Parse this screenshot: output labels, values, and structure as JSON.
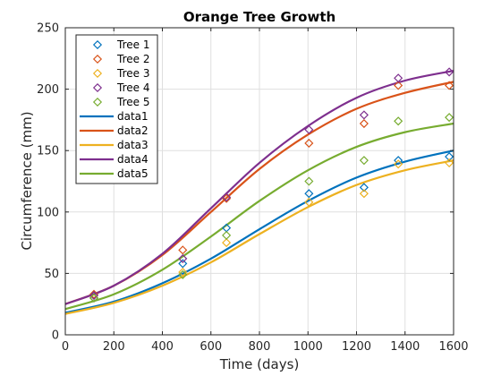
{
  "chart_data": {
    "type": "scatter",
    "title": "Orange Tree Growth",
    "xlabel": "Time (days)",
    "ylabel": "Circumference (mm)",
    "xlim": [
      0,
      1600
    ],
    "ylim": [
      0,
      250
    ],
    "xticks": [
      0,
      200,
      400,
      600,
      800,
      1000,
      1200,
      1400,
      1600
    ],
    "yticks": [
      0,
      50,
      100,
      150,
      200,
      250
    ],
    "grid": true,
    "legend_position": "top-left",
    "series": [
      {
        "name": "Tree 1",
        "kind": "marker",
        "marker": "diamond",
        "color": "#0072BD",
        "x": [
          118,
          484,
          664,
          1004,
          1231,
          1372,
          1582
        ],
        "y": [
          30,
          58,
          87,
          115,
          120,
          142,
          145
        ]
      },
      {
        "name": "Tree 2",
        "kind": "marker",
        "marker": "diamond",
        "color": "#D95319",
        "x": [
          118,
          484,
          664,
          1004,
          1231,
          1372,
          1582
        ],
        "y": [
          33,
          69,
          111,
          156,
          172,
          203,
          203
        ]
      },
      {
        "name": "Tree 3",
        "kind": "marker",
        "marker": "diamond",
        "color": "#EDB120",
        "x": [
          118,
          484,
          664,
          1004,
          1231,
          1372,
          1582
        ],
        "y": [
          30,
          51,
          75,
          108,
          115,
          139,
          140
        ]
      },
      {
        "name": "Tree 4",
        "kind": "marker",
        "marker": "diamond",
        "color": "#7E2F8E",
        "x": [
          118,
          484,
          664,
          1004,
          1231,
          1372,
          1582
        ],
        "y": [
          32,
          62,
          112,
          167,
          179,
          209,
          214
        ]
      },
      {
        "name": "Tree 5",
        "kind": "marker",
        "marker": "diamond",
        "color": "#77AC30",
        "x": [
          118,
          484,
          664,
          1004,
          1231,
          1372,
          1582
        ],
        "y": [
          30,
          49,
          81,
          125,
          142,
          174,
          177
        ]
      },
      {
        "name": "data1",
        "kind": "line",
        "color": "#0072BD",
        "x": [
          0,
          200,
          400,
          600,
          800,
          1000,
          1200,
          1400,
          1600
        ],
        "y": [
          18,
          27,
          42,
          62,
          86,
          109,
          128,
          141,
          150
        ]
      },
      {
        "name": "data2",
        "kind": "line",
        "color": "#D95319",
        "x": [
          0,
          200,
          400,
          600,
          800,
          1000,
          1200,
          1400,
          1600
        ],
        "y": [
          25,
          40,
          65,
          100,
          135,
          163,
          184,
          197,
          206
        ]
      },
      {
        "name": "data3",
        "kind": "line",
        "color": "#EDB120",
        "x": [
          0,
          200,
          400,
          600,
          800,
          1000,
          1200,
          1400,
          1600
        ],
        "y": [
          17,
          26,
          40,
          59,
          82,
          104,
          122,
          134,
          142
        ]
      },
      {
        "name": "data4",
        "kind": "line",
        "color": "#7E2F8E",
        "x": [
          0,
          200,
          400,
          600,
          800,
          1000,
          1200,
          1400,
          1600
        ],
        "y": [
          25,
          40,
          66,
          103,
          140,
          170,
          193,
          207,
          215
        ]
      },
      {
        "name": "data5",
        "kind": "line",
        "color": "#77AC30",
        "x": [
          0,
          200,
          400,
          600,
          800,
          1000,
          1200,
          1400,
          1600
        ],
        "y": [
          21,
          33,
          53,
          80,
          109,
          134,
          153,
          165,
          172
        ]
      }
    ]
  }
}
